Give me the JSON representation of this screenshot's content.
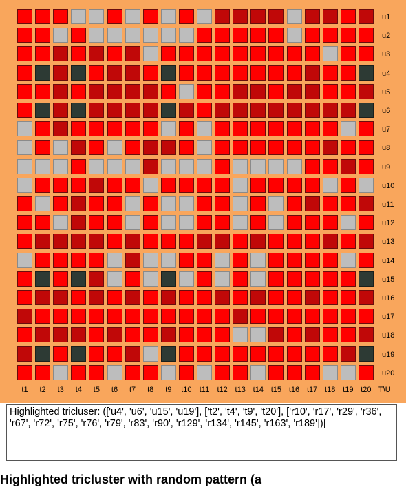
{
  "matrix": {
    "row_labels": [
      "u1",
      "u2",
      "u3",
      "u4",
      "u5",
      "u6",
      "u7",
      "u8",
      "u9",
      "u10",
      "u11",
      "u12",
      "u13",
      "u14",
      "u15",
      "u16",
      "u17",
      "u18",
      "u19",
      "u20"
    ],
    "col_labels": [
      "t1",
      "t2",
      "t3",
      "t4",
      "t5",
      "t6",
      "t7",
      "t8",
      "t9",
      "t10",
      "t11",
      "t12",
      "t13",
      "t14",
      "t15",
      "t16",
      "t17",
      "t18",
      "t19",
      "t20"
    ],
    "corner_label": "T\\U",
    "colors": {
      "bright_red": "#ff0000",
      "dark_red": "#c00808",
      "gray": "#bdbdbd",
      "dark": "#2d3a34",
      "background": "#f9a65c"
    },
    "cell_codes_legend": "0=bright red, 1=dark red, 2=gray, 3=dark highlighted",
    "cells": [
      [
        0,
        0,
        0,
        2,
        2,
        0,
        2,
        0,
        2,
        0,
        2,
        1,
        1,
        1,
        1,
        2,
        1,
        1,
        0,
        1
      ],
      [
        0,
        0,
        2,
        0,
        2,
        2,
        2,
        2,
        2,
        2,
        0,
        0,
        0,
        0,
        0,
        2,
        0,
        0,
        0,
        0
      ],
      [
        0,
        0,
        1,
        0,
        1,
        0,
        1,
        2,
        0,
        0,
        0,
        0,
        0,
        0,
        0,
        0,
        0,
        2,
        0,
        0
      ],
      [
        0,
        3,
        1,
        3,
        0,
        1,
        1,
        0,
        3,
        0,
        0,
        0,
        0,
        0,
        0,
        0,
        1,
        0,
        0,
        3
      ],
      [
        0,
        0,
        1,
        0,
        1,
        1,
        1,
        1,
        0,
        2,
        0,
        0,
        1,
        1,
        0,
        1,
        1,
        0,
        0,
        1
      ],
      [
        0,
        3,
        1,
        3,
        1,
        1,
        1,
        1,
        3,
        1,
        0,
        1,
        1,
        1,
        1,
        1,
        1,
        1,
        1,
        3
      ],
      [
        2,
        0,
        1,
        0,
        0,
        0,
        0,
        0,
        2,
        0,
        2,
        0,
        0,
        0,
        0,
        0,
        0,
        0,
        2,
        0
      ],
      [
        2,
        0,
        2,
        1,
        0,
        2,
        0,
        1,
        1,
        0,
        2,
        0,
        0,
        0,
        0,
        0,
        0,
        1,
        0,
        0
      ],
      [
        2,
        2,
        2,
        0,
        2,
        2,
        2,
        1,
        2,
        2,
        2,
        0,
        2,
        2,
        2,
        2,
        0,
        0,
        1,
        0
      ],
      [
        2,
        0,
        0,
        0,
        1,
        0,
        0,
        2,
        0,
        0,
        0,
        0,
        2,
        0,
        0,
        0,
        0,
        2,
        0,
        2
      ],
      [
        0,
        2,
        0,
        1,
        0,
        0,
        2,
        0,
        2,
        2,
        0,
        0,
        2,
        0,
        2,
        0,
        1,
        0,
        0,
        1
      ],
      [
        0,
        0,
        2,
        1,
        0,
        0,
        2,
        0,
        2,
        2,
        0,
        0,
        2,
        0,
        2,
        0,
        0,
        0,
        2,
        0
      ],
      [
        0,
        1,
        1,
        1,
        1,
        0,
        1,
        0,
        0,
        0,
        1,
        1,
        0,
        1,
        0,
        0,
        0,
        1,
        0,
        1
      ],
      [
        2,
        0,
        0,
        0,
        0,
        2,
        1,
        2,
        2,
        0,
        0,
        2,
        0,
        2,
        0,
        0,
        0,
        0,
        2,
        0
      ],
      [
        0,
        3,
        0,
        3,
        1,
        2,
        0,
        2,
        3,
        2,
        0,
        2,
        0,
        2,
        0,
        0,
        0,
        0,
        0,
        3
      ],
      [
        0,
        1,
        1,
        0,
        1,
        0,
        1,
        0,
        1,
        0,
        0,
        1,
        0,
        1,
        0,
        0,
        1,
        0,
        0,
        1
      ],
      [
        1,
        0,
        0,
        0,
        0,
        0,
        0,
        0,
        0,
        0,
        0,
        0,
        1,
        0,
        0,
        0,
        0,
        0,
        0,
        0
      ],
      [
        0,
        1,
        1,
        1,
        0,
        1,
        0,
        0,
        1,
        0,
        0,
        0,
        2,
        2,
        1,
        0,
        1,
        0,
        0,
        1
      ],
      [
        1,
        3,
        0,
        3,
        0,
        0,
        1,
        2,
        3,
        0,
        0,
        0,
        0,
        0,
        0,
        0,
        0,
        0,
        1,
        3
      ],
      [
        0,
        0,
        2,
        0,
        0,
        2,
        0,
        0,
        2,
        0,
        2,
        0,
        0,
        2,
        0,
        0,
        0,
        2,
        2,
        0
      ]
    ]
  },
  "textbox": {
    "value": "Highlighted tricluser: (['u4', 'u6', 'u15', 'u19'], ['t2', 't4', 't9', 't20'], ['r10', 'r17', 'r29', 'r36', 'r67', 'r72', 'r75', 'r76', 'r79', 'r83', 'r90', 'r129', 'r134', 'r145', 'r163', 'r189'])|"
  },
  "caption": "Highlighted tricluster with random pattern (a"
}
